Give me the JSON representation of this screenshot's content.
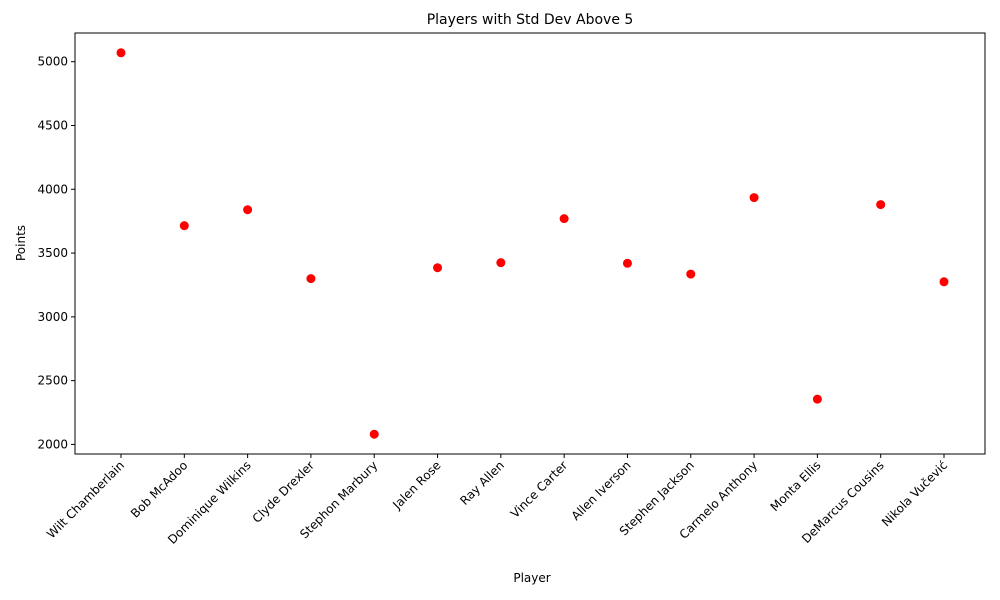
{
  "chart_data": {
    "type": "scatter",
    "title": "Players with Std Dev Above 5",
    "xlabel": "Player",
    "ylabel": "Points",
    "categories": [
      "Wilt Chamberlain",
      "Bob McAdoo",
      "Dominique Wilkins",
      "Clyde Drexler",
      "Stephon Marbury",
      "Jalen Rose",
      "Ray Allen",
      "Vince Carter",
      "Allen Iverson",
      "Stephen Jackson",
      "Carmelo Anthony",
      "Monta Ellis",
      "DeMarcus Cousins",
      "Nikola Vučević"
    ],
    "values": [
      5070,
      3715,
      3840,
      3300,
      2080,
      3385,
      3425,
      3770,
      3420,
      3335,
      3935,
      2355,
      3880,
      3275
    ],
    "yticks": [
      2000,
      2500,
      3000,
      3500,
      4000,
      4500,
      5000
    ],
    "ylim": [
      1925,
      5225
    ],
    "marker_color": "#ff0000",
    "grid": false,
    "legend": false
  }
}
